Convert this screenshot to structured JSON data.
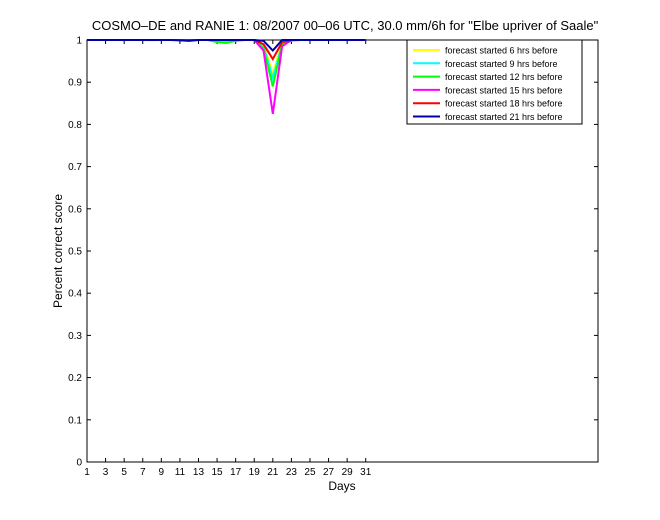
{
  "chart_data": {
    "type": "line",
    "title": "COSMO–DE and RANIE 1: 08/2007 00–06 UTC, 30.0 mm/6h for \"Elbe upriver of Saale\"",
    "xlabel": "Days",
    "ylabel": "Percent correct score",
    "xlim": [
      1,
      56
    ],
    "ylim": [
      0,
      1
    ],
    "xticks": [
      1,
      3,
      5,
      7,
      9,
      11,
      13,
      15,
      17,
      19,
      21,
      23,
      25,
      27,
      29,
      31
    ],
    "yticks": [
      0,
      0.1,
      0.2,
      0.3,
      0.4,
      0.5,
      0.6,
      0.7,
      0.8,
      0.9,
      1
    ],
    "ytick_labels": [
      "0",
      "0.1",
      "0.2",
      "0.3",
      "0.4",
      "0.5",
      "0.6",
      "0.7",
      "0.8",
      "0.9",
      "1"
    ],
    "legend_position": "top-right",
    "x": [
      1,
      2,
      3,
      4,
      5,
      6,
      7,
      8,
      9,
      10,
      11,
      12,
      13,
      14,
      15,
      16,
      17,
      18,
      19,
      20,
      21,
      22,
      23,
      24,
      25,
      26,
      27,
      28,
      29,
      30,
      31
    ],
    "series": [
      {
        "name": "forecast started 6 hrs before",
        "color": "#ffff00",
        "values": [
          1,
          1,
          1,
          1,
          1,
          1,
          1,
          0.999,
          1,
          1,
          1,
          1,
          1,
          1,
          1,
          1,
          1,
          1,
          1,
          0.99,
          0.92,
          0.995,
          1,
          1,
          1,
          1,
          1,
          1,
          1,
          1,
          1
        ]
      },
      {
        "name": "forecast started 9 hrs before",
        "color": "#00ffff",
        "values": [
          1,
          1,
          1,
          1,
          1,
          1,
          1,
          1,
          1,
          1,
          1,
          1,
          1,
          1,
          0.998,
          0.996,
          1,
          1,
          1,
          0.985,
          0.91,
          0.99,
          0.998,
          1,
          1,
          1,
          1,
          1,
          1,
          1,
          1
        ]
      },
      {
        "name": "forecast started 12 hrs before",
        "color": "#00ff00",
        "values": [
          1,
          1,
          1,
          1,
          1,
          1,
          1,
          1,
          1,
          1,
          1,
          1,
          1,
          1,
          0.995,
          0.993,
          0.998,
          1,
          1,
          0.98,
          0.89,
          0.99,
          1,
          1,
          1,
          1,
          1,
          1,
          1,
          1,
          1
        ]
      },
      {
        "name": "forecast started 15 hrs before",
        "color": "#ff00ff",
        "values": [
          1,
          1,
          1,
          1,
          1,
          1,
          1,
          1,
          1,
          1,
          1,
          1,
          1,
          1,
          1,
          1,
          1,
          1,
          1,
          0.975,
          0.825,
          0.985,
          1,
          1,
          1,
          1,
          1,
          1,
          1,
          1,
          1
        ]
      },
      {
        "name": "forecast started 18 hrs before",
        "color": "#ff0000",
        "values": [
          1,
          1,
          1,
          1,
          1,
          1,
          1,
          1,
          1,
          1,
          1,
          1,
          1,
          1,
          1,
          1,
          1,
          1,
          1,
          0.99,
          0.955,
          0.995,
          1,
          1,
          1,
          1,
          1,
          1,
          1,
          1,
          1
        ]
      },
      {
        "name": "forecast started 21 hrs before",
        "color": "#0000aa",
        "values": [
          1,
          1,
          1,
          1,
          1,
          1,
          1,
          1,
          1,
          1,
          0.999,
          0.998,
          1,
          1,
          1,
          1,
          1,
          1,
          1,
          0.998,
          0.975,
          1,
          1,
          1,
          1,
          1,
          1,
          1,
          1,
          1,
          1
        ]
      }
    ]
  }
}
